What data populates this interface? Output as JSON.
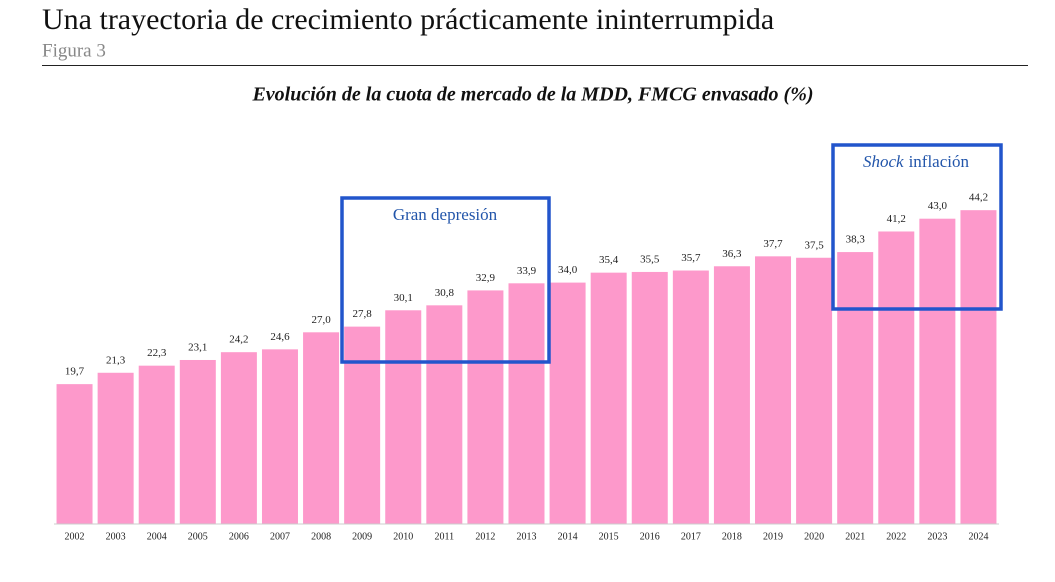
{
  "title": "Una trayectoria de crecimiento prácticamente ininterrumpida",
  "figure_label": "Figura 3",
  "chart_data": {
    "type": "bar",
    "title": "Evolución de la cuota de mercado de la MDD, FMCG envasado (%)",
    "categories": [
      "2002",
      "2003",
      "2004",
      "2005",
      "2006",
      "2007",
      "2008",
      "2009",
      "2010",
      "2011",
      "2012",
      "2013",
      "2014",
      "2015",
      "2016",
      "2017",
      "2018",
      "2019",
      "2020",
      "2021",
      "2022",
      "2023",
      "2024"
    ],
    "values": [
      19.7,
      21.3,
      22.3,
      23.1,
      24.2,
      24.6,
      27.0,
      27.8,
      30.1,
      30.8,
      32.9,
      33.9,
      34.0,
      35.4,
      35.5,
      35.7,
      36.3,
      37.7,
      37.5,
      38.3,
      41.2,
      43.0,
      44.2
    ],
    "value_labels": [
      "19,7",
      "21,3",
      "22,3",
      "23,1",
      "24,2",
      "24,6",
      "27,0",
      "27,8",
      "30,1",
      "30,8",
      "32,9",
      "33,9",
      "34,0",
      "35,4",
      "35,5",
      "35,7",
      "36,3",
      "37,7",
      "37,5",
      "38,3",
      "41,2",
      "43,0",
      "44,2"
    ],
    "color": "#fd99cb",
    "ylim": [
      0,
      60
    ],
    "annotations": [
      {
        "text": "Gran depresión"
      },
      {
        "italic": "Shock",
        "text": "inflación"
      }
    ]
  }
}
